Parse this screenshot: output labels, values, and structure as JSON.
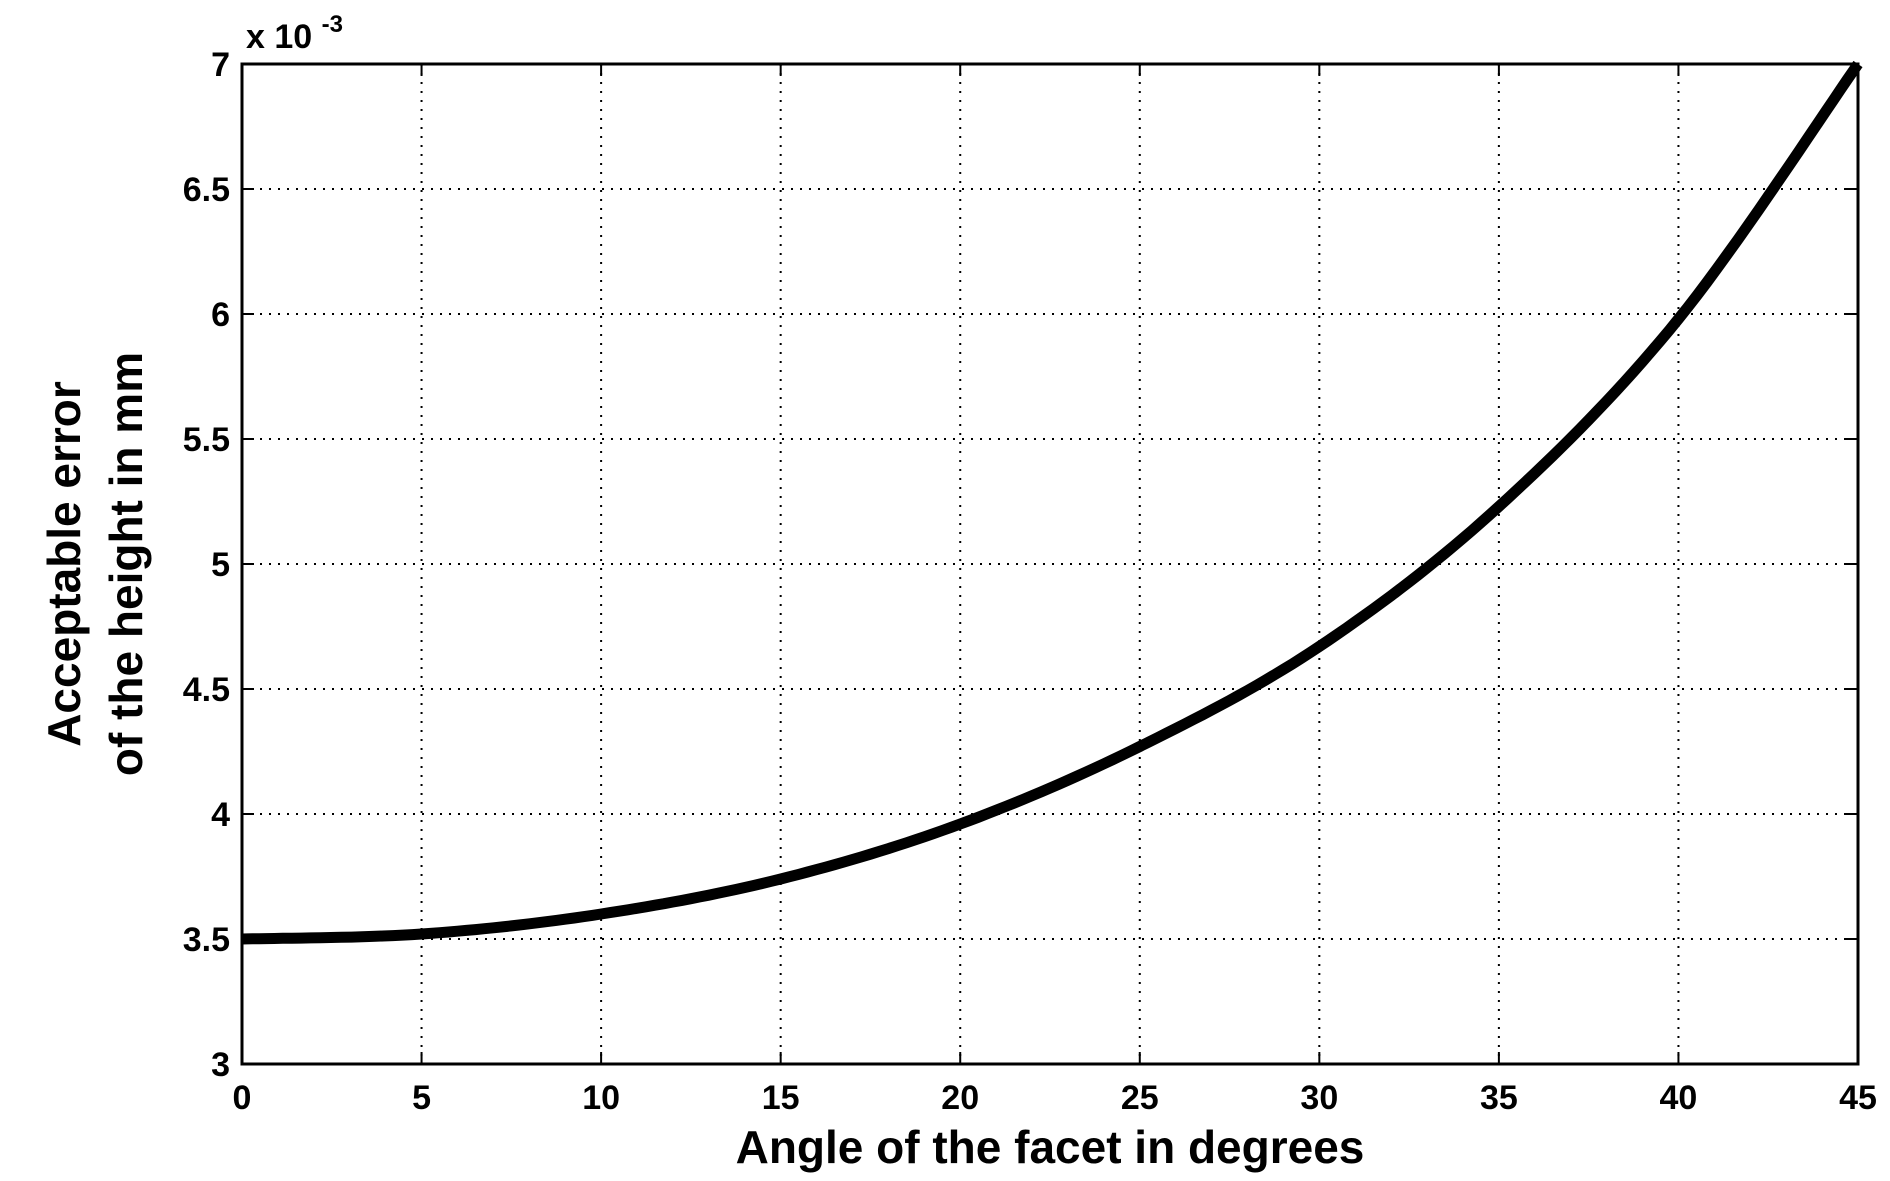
{
  "chart_data": {
    "type": "line",
    "xlabel": "Angle of the facet in degrees",
    "ylabel_lines": [
      "Acceptable error",
      "of the height in mm"
    ],
    "y_multiplier": {
      "base": "x 10",
      "exponent": "-3"
    },
    "xlim": [
      0,
      45
    ],
    "ylim": [
      3,
      7
    ],
    "x_ticks": [
      0,
      5,
      10,
      15,
      20,
      25,
      30,
      35,
      40,
      45
    ],
    "y_ticks": [
      3,
      3.5,
      4,
      4.5,
      5,
      5.5,
      6,
      6.5,
      7
    ],
    "x_tick_labels": [
      "0",
      "5",
      "10",
      "15",
      "20",
      "25",
      "30",
      "35",
      "40",
      "45"
    ],
    "y_tick_labels": [
      "3",
      "3.5",
      "4",
      "4.5",
      "5",
      "5.5",
      "6",
      "6.5",
      "7"
    ],
    "grid": true,
    "series": [
      {
        "color": "#000000",
        "x": [
          0,
          5,
          10,
          15,
          20,
          25,
          30,
          35,
          40,
          45
        ],
        "y": [
          3.5,
          3.52,
          3.6,
          3.74,
          3.96,
          4.27,
          4.67,
          5.23,
          5.98,
          7.0
        ]
      }
    ]
  }
}
